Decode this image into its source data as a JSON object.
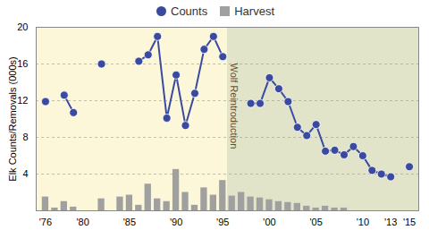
{
  "chart_data": {
    "type": "line",
    "y_label": "Elk Counts/Removals (000s)",
    "annotations": [
      {
        "text": "Wolf Reintroduction",
        "x": 1995.5
      }
    ],
    "x": [
      1976,
      1977,
      1978,
      1979,
      1980,
      1981,
      1982,
      1983,
      1984,
      1985,
      1986,
      1987,
      1988,
      1989,
      1990,
      1991,
      1992,
      1993,
      1994,
      1995,
      1996,
      1997,
      1998,
      1999,
      2000,
      2001,
      2002,
      2003,
      2004,
      2005,
      2006,
      2007,
      2008,
      2009,
      2010,
      2011,
      2012,
      2013,
      2014,
      2015
    ],
    "series": [
      {
        "name": "Counts",
        "type": "line",
        "marker": "circle",
        "color": "#3a4aa0",
        "values": [
          11.9,
          null,
          12.6,
          10.7,
          null,
          null,
          16.0,
          null,
          null,
          null,
          16.3,
          17.0,
          19.0,
          10.1,
          14.8,
          9.3,
          12.8,
          17.6,
          19.0,
          16.8,
          null,
          null,
          11.7,
          11.7,
          14.5,
          13.3,
          11.9,
          9.1,
          8.2,
          9.4,
          6.5,
          6.6,
          6.1,
          7.0,
          6.0,
          4.4,
          4.0,
          3.7,
          null,
          4.8
        ]
      },
      {
        "name": "Harvest",
        "type": "bar",
        "marker": "square",
        "color": "#a0a0a0",
        "values": [
          1.5,
          0.3,
          1.0,
          0.4,
          null,
          null,
          1.3,
          null,
          1.5,
          1.7,
          0.6,
          2.9,
          1.3,
          1.0,
          4.5,
          2.0,
          0.6,
          2.5,
          1.7,
          3.3,
          1.6,
          2.0,
          1.5,
          1.4,
          1.2,
          1.0,
          0.9,
          0.8,
          0.5,
          0.3,
          0.5,
          0.3,
          0.3,
          null,
          null,
          null,
          null,
          null,
          null,
          null
        ]
      }
    ],
    "xlim": [
      1975,
      2016
    ],
    "xticks": [
      {
        "value": 1976,
        "label": "'76"
      },
      {
        "value": 1980,
        "label": "'80"
      },
      {
        "value": 1985,
        "label": "'85"
      },
      {
        "value": 1990,
        "label": "'90"
      },
      {
        "value": 1995,
        "label": "'95"
      },
      {
        "value": 2000,
        "label": "'00"
      },
      {
        "value": 2005,
        "label": "'05"
      },
      {
        "value": 2010,
        "label": "'10"
      },
      {
        "value": 2013,
        "label": "'13"
      },
      {
        "value": 2015,
        "label": "'15"
      }
    ],
    "ylim": [
      0,
      20
    ],
    "yticks": [
      4,
      8,
      12,
      16,
      20
    ],
    "grid": true,
    "legend": "top"
  }
}
